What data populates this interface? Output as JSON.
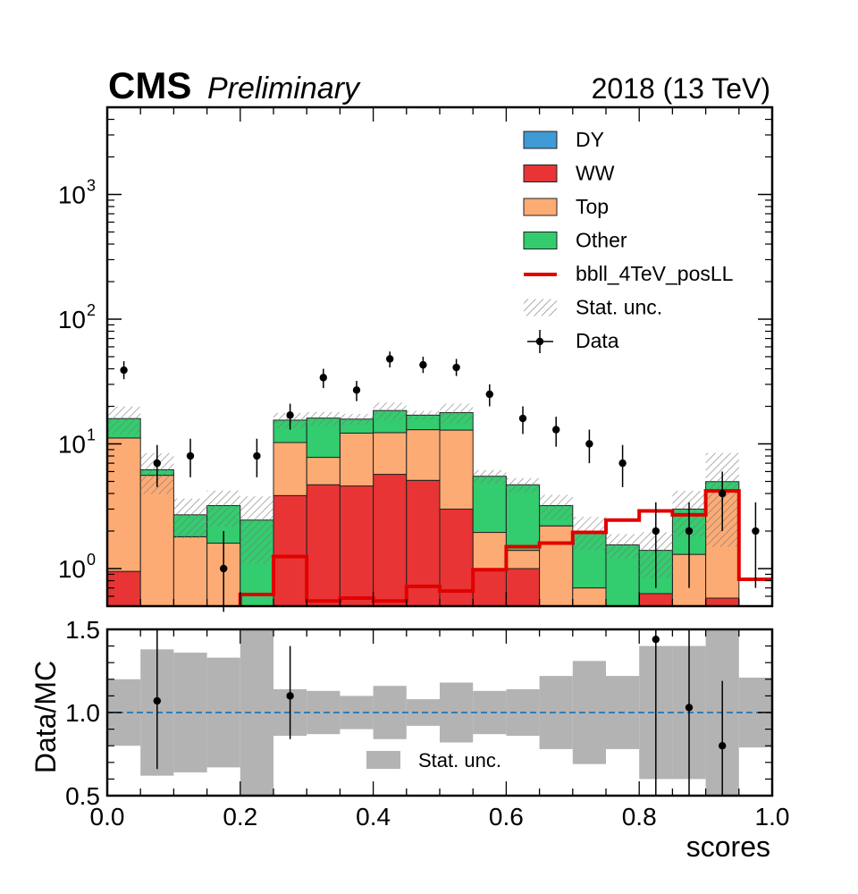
{
  "header": {
    "experiment": "CMS",
    "status": "Preliminary",
    "lumi": "2018 (13 TeV)"
  },
  "colors": {
    "DY": "#3f9ad6",
    "WW": "#e83434",
    "Top": "#fdab74",
    "Other": "#33cc6e",
    "signal": "#e00000",
    "band": "#b3b3b3",
    "ratio_ref": "#1f77b4"
  },
  "chart_data": [
    {
      "type": "stacked-histogram",
      "yscale": "log",
      "ylim": [
        0.5,
        5000
      ],
      "xlim": [
        0,
        1
      ],
      "bin_edges": [
        0,
        0.05,
        0.1,
        0.15,
        0.2,
        0.25,
        0.3,
        0.35,
        0.4,
        0.45,
        0.5,
        0.55,
        0.6,
        0.65,
        0.7,
        0.75,
        0.8,
        0.85,
        0.9,
        0.95,
        1.0
      ],
      "y_ticks": [
        {
          "value": 1,
          "label": "10",
          "exp": "0"
        },
        {
          "value": 10,
          "label": "10",
          "exp": "1"
        },
        {
          "value": 100,
          "label": "10",
          "exp": "2"
        },
        {
          "value": 1000,
          "label": "10",
          "exp": "3"
        }
      ],
      "series": [
        {
          "name": "DY",
          "values": [
            0,
            0,
            0,
            0,
            0,
            0,
            0,
            0,
            0,
            0,
            0,
            0,
            0,
            0,
            0,
            0,
            0.05,
            0,
            0,
            0
          ]
        },
        {
          "name": "WW",
          "values": [
            0.95,
            0,
            0,
            0,
            0,
            3.85,
            4.7,
            4.6,
            5.7,
            5.1,
            3.0,
            1.0,
            1.0,
            0,
            0,
            0,
            0.58,
            0,
            0.58,
            0
          ]
        },
        {
          "name": "Top",
          "values": [
            10.2,
            5.6,
            1.8,
            1.6,
            0,
            6.4,
            3.1,
            7.6,
            6.6,
            7.9,
            9.9,
            0.95,
            0.4,
            2.2,
            0.7,
            0,
            0,
            1.3,
            3.7,
            0
          ]
        },
        {
          "name": "Other",
          "values": [
            4.8,
            0.6,
            0.9,
            1.6,
            2.45,
            5.25,
            8.3,
            3.6,
            6.2,
            4.0,
            4.9,
            3.55,
            3.3,
            1.0,
            1.3,
            1.55,
            0.77,
            1.7,
            0.7,
            0
          ]
        }
      ],
      "stat_unc_rel": [
        0.25,
        0.36,
        0.35,
        0.32,
        0.55,
        0.14,
        0.12,
        0.1,
        0.16,
        0.08,
        0.18,
        0.12,
        0.13,
        0.22,
        0.3,
        0.22,
        0.4,
        0.4,
        0.7,
        0.25
      ],
      "signal": {
        "name": "bbll_4TeV_posLL",
        "values": [
          0,
          0,
          0,
          0,
          0.62,
          1.25,
          0.55,
          0.58,
          0.55,
          0.72,
          0.66,
          0.98,
          1.5,
          1.6,
          1.95,
          2.45,
          2.9,
          2.7,
          4.2,
          0.82
        ]
      },
      "data": [
        {
          "x": 0.025,
          "y": 39,
          "lo": 33,
          "hi": 46
        },
        {
          "x": 0.075,
          "y": 7,
          "lo": 4.5,
          "hi": 9.8
        },
        {
          "x": 0.125,
          "y": 8,
          "lo": 5.4,
          "hi": 11
        },
        {
          "x": 0.175,
          "y": 1,
          "lo": 0.45,
          "hi": 2.0
        },
        {
          "x": 0.225,
          "y": 8,
          "lo": 5.4,
          "hi": 11
        },
        {
          "x": 0.275,
          "y": 17,
          "lo": 13,
          "hi": 21
        },
        {
          "x": 0.325,
          "y": 34,
          "lo": 28,
          "hi": 40
        },
        {
          "x": 0.375,
          "y": 27,
          "lo": 22,
          "hi": 32
        },
        {
          "x": 0.425,
          "y": 48,
          "lo": 41,
          "hi": 55
        },
        {
          "x": 0.475,
          "y": 43,
          "lo": 37,
          "hi": 50
        },
        {
          "x": 0.525,
          "y": 41,
          "lo": 35,
          "hi": 48
        },
        {
          "x": 0.575,
          "y": 25,
          "lo": 20,
          "hi": 30
        },
        {
          "x": 0.625,
          "y": 16,
          "lo": 12,
          "hi": 20
        },
        {
          "x": 0.675,
          "y": 13,
          "lo": 9.5,
          "hi": 16.5
        },
        {
          "x": 0.725,
          "y": 10,
          "lo": 7,
          "hi": 13
        },
        {
          "x": 0.775,
          "y": 7,
          "lo": 4.5,
          "hi": 9.8
        },
        {
          "x": 0.825,
          "y": 2,
          "lo": 0.7,
          "hi": 3.4
        },
        {
          "x": 0.875,
          "y": 2,
          "lo": 0.7,
          "hi": 3.4
        },
        {
          "x": 0.925,
          "y": 4,
          "lo": 2.0,
          "hi": 6.0
        },
        {
          "x": 0.975,
          "y": 2,
          "lo": 0.7,
          "hi": 3.4
        }
      ],
      "legend": {
        "position": "top-right",
        "entries": [
          {
            "label": "DY",
            "kind": "patch",
            "series": "DY"
          },
          {
            "label": "WW",
            "kind": "patch",
            "series": "WW"
          },
          {
            "label": "Top",
            "kind": "patch",
            "series": "Top"
          },
          {
            "label": "Other",
            "kind": "patch",
            "series": "Other"
          },
          {
            "label": "bbll_4TeV_posLL",
            "kind": "line",
            "series": "signal"
          },
          {
            "label": "Stat. unc.",
            "kind": "hatch",
            "series": "stat"
          },
          {
            "label": "Data",
            "kind": "marker",
            "series": "data"
          }
        ]
      }
    },
    {
      "type": "ratio",
      "ylabel": "Data/MC",
      "xlabel": "scores",
      "ylim": [
        0.5,
        1.5
      ],
      "xlim": [
        0,
        1
      ],
      "reference": 1.0,
      "y_ticks": [
        "0.5",
        "1.0",
        "1.5"
      ],
      "x_ticks": [
        "0.0",
        "0.2",
        "0.4",
        "0.6",
        "0.8",
        "1.0"
      ],
      "band_rel": [
        0.2,
        0.38,
        0.36,
        0.33,
        0.55,
        0.14,
        0.13,
        0.1,
        0.16,
        0.08,
        0.18,
        0.13,
        0.14,
        0.22,
        0.31,
        0.22,
        0.4,
        0.4,
        0.6,
        0.21
      ],
      "points": [
        {
          "x": 0.075,
          "y": 1.07,
          "lo": 0.66,
          "hi": 1.5
        },
        {
          "x": 0.275,
          "y": 1.1,
          "lo": 0.84,
          "hi": 1.4
        },
        {
          "x": 0.825,
          "y": 1.44,
          "lo": 0.5,
          "hi": 1.5
        },
        {
          "x": 0.875,
          "y": 1.03,
          "lo": 0.5,
          "hi": 1.5
        },
        {
          "x": 0.925,
          "y": 0.8,
          "lo": 0.5,
          "hi": 1.19
        }
      ],
      "band_legend": "Stat. unc."
    }
  ]
}
